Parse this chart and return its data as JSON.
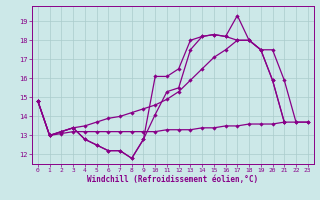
{
  "xlabel": "Windchill (Refroidissement éolien,°C)",
  "bg_color": "#cce8e8",
  "line_color": "#880088",
  "grid_color": "#aacccc",
  "xlim": [
    -0.5,
    23.5
  ],
  "ylim": [
    11.5,
    19.8
  ],
  "xticks": [
    0,
    1,
    2,
    3,
    4,
    5,
    6,
    7,
    8,
    9,
    10,
    11,
    12,
    13,
    14,
    15,
    16,
    17,
    18,
    19,
    20,
    21,
    22,
    23
  ],
  "yticks": [
    12,
    13,
    14,
    15,
    16,
    17,
    18,
    19
  ],
  "line1_x": [
    0,
    1,
    2,
    3,
    4,
    5,
    6,
    7,
    8,
    9,
    10,
    11,
    12,
    13,
    14,
    15,
    16,
    17,
    18,
    19,
    20,
    21
  ],
  "line1_y": [
    14.8,
    13.0,
    13.2,
    13.4,
    12.8,
    12.5,
    12.2,
    12.2,
    11.8,
    12.8,
    14.1,
    15.3,
    15.5,
    17.5,
    18.2,
    18.3,
    18.2,
    19.3,
    18.0,
    17.5,
    15.9,
    13.7
  ],
  "line2_x": [
    0,
    1,
    2,
    3,
    4,
    5,
    6,
    7,
    8,
    9,
    10,
    11,
    12,
    13,
    14,
    15,
    16,
    17,
    18,
    19,
    20,
    21
  ],
  "line2_y": [
    14.8,
    13.0,
    13.2,
    13.4,
    12.8,
    12.5,
    12.2,
    12.2,
    11.8,
    12.8,
    16.1,
    16.1,
    16.5,
    18.0,
    18.2,
    18.3,
    18.2,
    18.0,
    18.0,
    17.5,
    15.9,
    13.7
  ],
  "line3_x": [
    0,
    1,
    2,
    3,
    4,
    5,
    6,
    7,
    8,
    9,
    10,
    11,
    12,
    13,
    14,
    15,
    16,
    17,
    18,
    19,
    20,
    21,
    22,
    23
  ],
  "line3_y": [
    14.8,
    13.0,
    13.1,
    13.2,
    13.2,
    13.2,
    13.2,
    13.2,
    13.2,
    13.2,
    13.2,
    13.3,
    13.3,
    13.3,
    13.4,
    13.4,
    13.5,
    13.5,
    13.6,
    13.6,
    13.6,
    13.7,
    13.7,
    13.7
  ],
  "line4_x": [
    0,
    1,
    2,
    3,
    4,
    5,
    6,
    7,
    8,
    9,
    10,
    11,
    12,
    13,
    14,
    15,
    16,
    17,
    18,
    19,
    20,
    21,
    22,
    23
  ],
  "line4_y": [
    14.8,
    13.0,
    13.2,
    13.4,
    13.5,
    13.7,
    13.9,
    14.0,
    14.2,
    14.4,
    14.6,
    14.9,
    15.3,
    15.9,
    16.5,
    17.1,
    17.5,
    18.0,
    18.0,
    17.5,
    17.5,
    15.9,
    13.7,
    13.7
  ]
}
